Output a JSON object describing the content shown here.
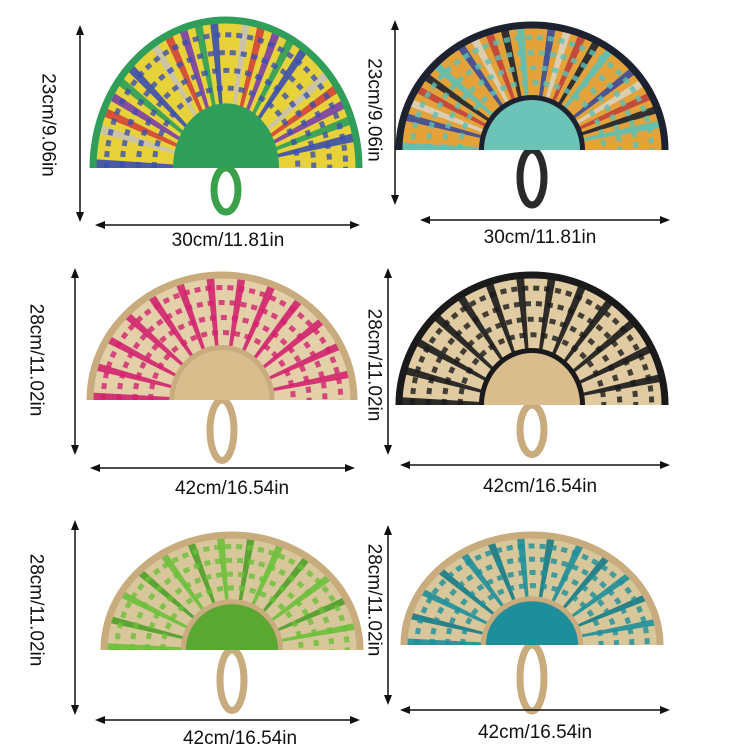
{
  "products": [
    {
      "width_label": "30cm/11.81in",
      "height_label": "23cm/9.06in",
      "colors": {
        "frame": "#2e9e5a",
        "weave": [
          "#3a4fb0",
          "#e8d23a",
          "#c9c2b0",
          "#d0443a",
          "#7a3ea8",
          "#2e9e5a"
        ],
        "inner": "#2e9e5a",
        "handle": "#3aa04a"
      }
    },
    {
      "width_label": "30cm/11.81in",
      "height_label": "23cm/9.06in",
      "colors": {
        "frame": "#1d2230",
        "weave": [
          "#5cc0b5",
          "#e3a23a",
          "#3a4a9a",
          "#d9d2c0",
          "#c0403a",
          "#1d2230"
        ],
        "inner": "#6cc4b8",
        "handle": "#2a2a2a"
      }
    },
    {
      "width_label": "42cm/16.54in",
      "height_label": "28cm/11.02in",
      "colors": {
        "frame": "#c9ac7e",
        "weave": [
          "#d2226e",
          "#e3cfa8",
          "#d2226e",
          "#e3cfa8"
        ],
        "inner": "#d9bd8c",
        "handle": "#c9ac7e"
      }
    },
    {
      "width_label": "42cm/16.54in",
      "height_label": "28cm/11.02in",
      "colors": {
        "frame": "#1a1a1a",
        "weave": [
          "#1a1a1a",
          "#e0cba2",
          "#1a1a1a",
          "#e0cba2"
        ],
        "inner": "#d9bd8c",
        "handle": "#c9ac7e"
      }
    },
    {
      "width_label": "42cm/16.54in",
      "height_label": "28cm/11.02in",
      "colors": {
        "frame": "#c9ac7e",
        "weave": [
          "#6cbf3a",
          "#d8c79a",
          "#4f9e2a",
          "#d8c79a"
        ],
        "inner": "#5aa832",
        "handle": "#c9ac7e"
      }
    },
    {
      "width_label": "42cm/16.54in",
      "height_label": "28cm/11.02in",
      "colors": {
        "frame": "#c9ac7e",
        "weave": [
          "#1e8f9a",
          "#d8c79a",
          "#167a86",
          "#d8c79a"
        ],
        "inner": "#1e8f9a",
        "handle": "#c9ac7e"
      }
    }
  ]
}
